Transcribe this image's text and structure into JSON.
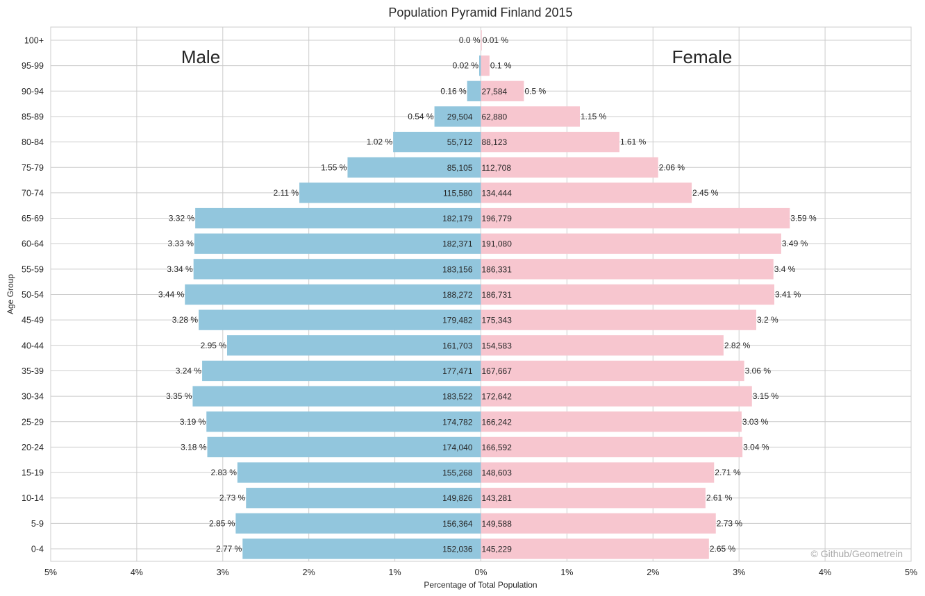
{
  "chart_data": {
    "type": "bar",
    "orientation": "horizontal",
    "title": "Population Pyramid Finland 2015",
    "xlabel": "Percentage of Total Population",
    "ylabel": "Age Group",
    "xlim": [
      -5,
      5
    ],
    "x_ticks": [
      -5,
      -4,
      -3,
      -2,
      -1,
      0,
      1,
      2,
      3,
      4,
      5
    ],
    "x_tick_labels": [
      "5%",
      "4%",
      "3%",
      "2%",
      "1%",
      "0%",
      "1%",
      "2%",
      "3%",
      "4%",
      "5%"
    ],
    "grid": true,
    "categories": [
      "100+",
      "95-99",
      "90-94",
      "85-89",
      "80-84",
      "75-79",
      "70-74",
      "65-69",
      "60-64",
      "55-59",
      "50-54",
      "45-49",
      "40-44",
      "35-39",
      "30-34",
      "25-29",
      "20-24",
      "15-19",
      "10-14",
      "5-9",
      "0-4"
    ],
    "series": [
      {
        "name": "Male",
        "color": "#92c6dd",
        "percent": [
          0.0,
          0.02,
          0.16,
          0.54,
          1.02,
          1.55,
          2.11,
          3.32,
          3.33,
          3.34,
          3.44,
          3.28,
          2.95,
          3.24,
          3.35,
          3.19,
          3.18,
          2.83,
          2.73,
          2.85,
          2.77
        ],
        "percent_labels": [
          "0.0 %",
          "0.02 %",
          "0.16 %",
          "0.54 %",
          "1.02 %",
          "1.55 %",
          "2.11 %",
          "3.32 %",
          "3.33 %",
          "3.34 %",
          "3.44 %",
          "3.28 %",
          "2.95 %",
          "3.24 %",
          "3.35 %",
          "3.19 %",
          "3.18 %",
          "2.83 %",
          "2.73 %",
          "2.85 %",
          "2.77 %"
        ],
        "count_labels": [
          "",
          "",
          "",
          "29,504",
          "55,712",
          "85,105",
          "115,580",
          "182,179",
          "182,371",
          "183,156",
          "188,272",
          "179,482",
          "161,703",
          "177,471",
          "183,522",
          "174,782",
          "174,040",
          "155,268",
          "149,826",
          "156,364",
          "152,036"
        ]
      },
      {
        "name": "Female",
        "color": "#f7c6cf",
        "percent": [
          0.01,
          0.1,
          0.5,
          1.15,
          1.61,
          2.06,
          2.45,
          3.59,
          3.49,
          3.4,
          3.41,
          3.2,
          2.82,
          3.06,
          3.15,
          3.03,
          3.04,
          2.71,
          2.61,
          2.73,
          2.65
        ],
        "percent_labels": [
          "0.01 %",
          "0.1 %",
          "0.5 %",
          "1.15 %",
          "1.61 %",
          "2.06 %",
          "2.45 %",
          "3.59 %",
          "3.49 %",
          "3.4 %",
          "3.41 %",
          "3.2 %",
          "2.82 %",
          "3.06 %",
          "3.15 %",
          "3.03 %",
          "3.04 %",
          "2.71 %",
          "2.61 %",
          "2.73 %",
          "2.65 %"
        ],
        "count_labels": [
          "",
          "",
          "27,584",
          "62,880",
          "88,123",
          "112,708",
          "134,444",
          "196,779",
          "191,080",
          "186,331",
          "186,731",
          "175,343",
          "154,583",
          "167,667",
          "172,642",
          "166,242",
          "166,592",
          "148,603",
          "143,281",
          "149,588",
          "145,229"
        ]
      }
    ],
    "annotations": {
      "male_label": "Male",
      "female_label": "Female",
      "credit": "© Github/Geometrein"
    }
  }
}
